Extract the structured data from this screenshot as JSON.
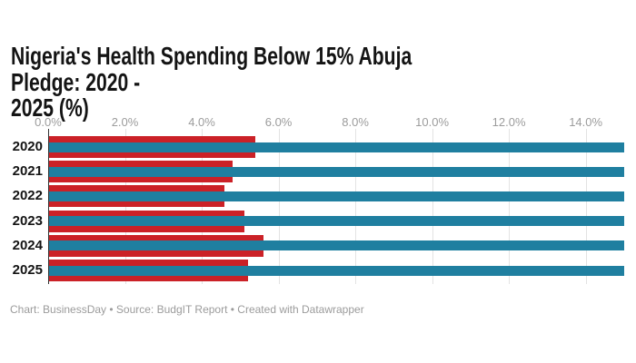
{
  "title": "Nigeria's Health Spending Below 15% Abuja Pledge: 2020 -\n2025 (%)",
  "footer": "Chart: BusinessDay • Source: BudgIT Report • Created with Datawrapper",
  "colors": {
    "spending_red": "#cb2127",
    "pledge_teal": "#1f7fa0",
    "gridline": "#e3e3e3",
    "zero_baseline": "#333333",
    "axis_text": "#9c9c9c",
    "title_text": "#141414",
    "footer_text": "#9b9b9b"
  },
  "chart_data": {
    "type": "bar",
    "orientation": "horizontal",
    "title": "Nigeria's Health Spending Below 15% Abuja Pledge: 2020 - 2025 (%)",
    "categories": [
      "2020",
      "2021",
      "2022",
      "2023",
      "2024",
      "2025"
    ],
    "series": [
      {
        "name": "health_spending_pct",
        "color": "#cb2127",
        "values": [
          5.4,
          4.8,
          4.6,
          5.1,
          5.6,
          5.2
        ]
      },
      {
        "name": "abuja_pledge_15pct",
        "color": "#1f7fa0",
        "values": [
          15,
          15,
          15,
          15,
          15,
          15
        ]
      }
    ],
    "x_ticks": [
      {
        "label": "0.0%",
        "value": 0
      },
      {
        "label": "2.0%",
        "value": 2
      },
      {
        "label": "4.0%",
        "value": 4
      },
      {
        "label": "6.0%",
        "value": 6
      },
      {
        "label": "8.0%",
        "value": 8
      },
      {
        "label": "10.0%",
        "value": 10
      },
      {
        "label": "12.0%",
        "value": 12
      },
      {
        "label": "14.0%",
        "value": 14
      }
    ],
    "xlim": [
      0,
      15
    ],
    "xlabel": "",
    "ylabel": "",
    "grid": true,
    "legend": "none"
  }
}
